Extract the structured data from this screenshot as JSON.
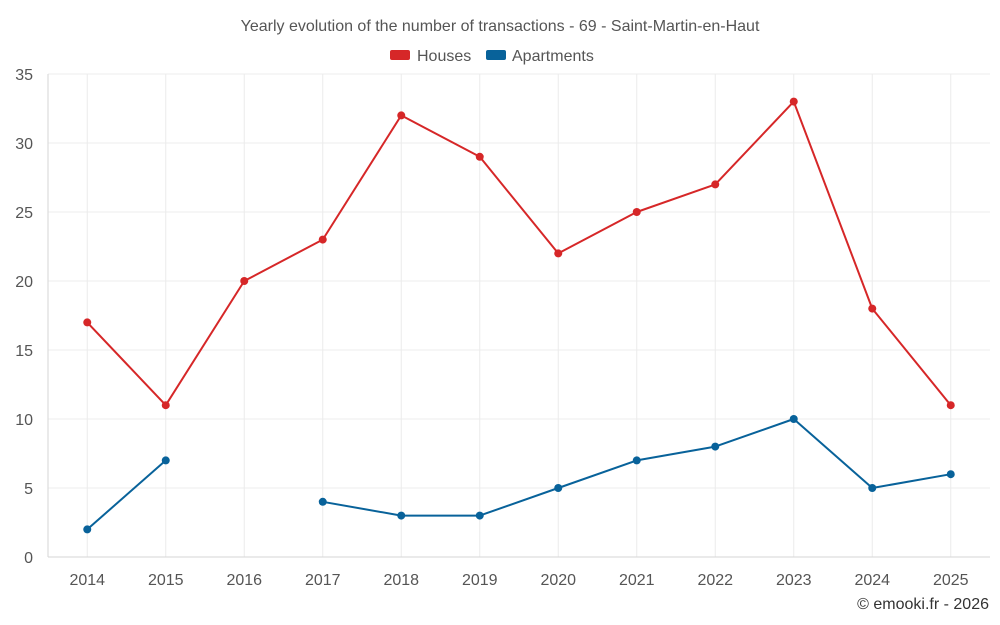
{
  "chart_data": {
    "type": "line",
    "title": "Yearly evolution of the number of transactions - 69 - Saint-Martin-en-Haut",
    "xlabel": "",
    "ylabel": "",
    "x": [
      "2014",
      "2015",
      "2016",
      "2017",
      "2018",
      "2019",
      "2020",
      "2021",
      "2022",
      "2023",
      "2024",
      "2025"
    ],
    "ylim": [
      0,
      35
    ],
    "yticks": [
      0,
      5,
      10,
      15,
      20,
      25,
      30,
      35
    ],
    "grid": true,
    "legend_position": "top-center",
    "series": [
      {
        "name": "Houses",
        "color": "#d62728",
        "values": [
          17,
          11,
          20,
          23,
          32,
          29,
          22,
          25,
          27,
          33,
          18,
          11
        ]
      },
      {
        "name": "Apartments",
        "color": "#08629a",
        "values": [
          2,
          7,
          null,
          4,
          3,
          3,
          5,
          7,
          8,
          10,
          5,
          6
        ]
      }
    ]
  },
  "credit": "© emooki.fr - 2026"
}
